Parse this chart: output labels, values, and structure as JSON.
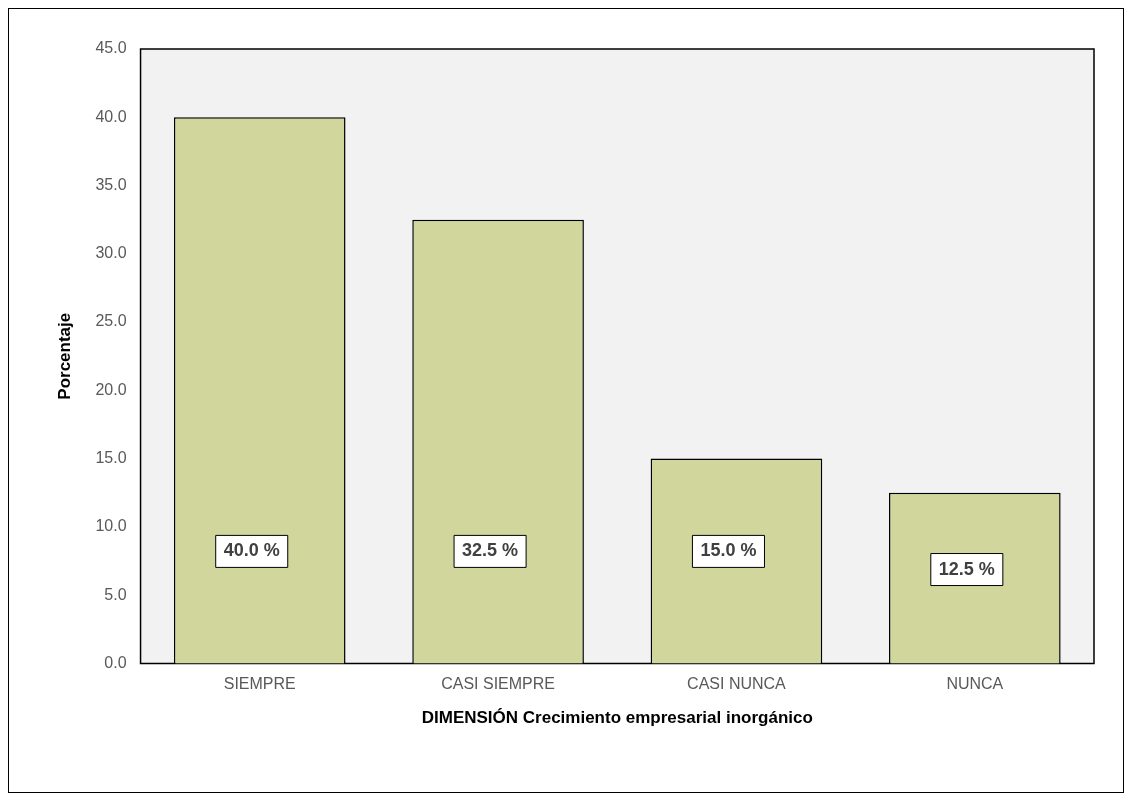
{
  "chart_data": {
    "type": "bar",
    "xlabel": "DIMENSIÓN Crecimiento empresarial inorgánico",
    "ylabel": "Porcentaje",
    "categories": [
      "SIEMPRE",
      "CASI SIEMPRE",
      "CASI NUNCA",
      "NUNCA"
    ],
    "values": [
      40.0,
      32.5,
      15.0,
      12.5
    ],
    "value_labels": [
      "40.0 %",
      "32.5 %",
      "15.0 %",
      "12.5 %"
    ],
    "color": "#d0d69c",
    "ylim": [
      0,
      45
    ],
    "yticks": [
      {
        "value": 0,
        "label": "0.0"
      },
      {
        "value": 5,
        "label": "5.0"
      },
      {
        "value": 10,
        "label": "10.0"
      },
      {
        "value": 15,
        "label": "15.0"
      },
      {
        "value": 20,
        "label": "20.0"
      },
      {
        "value": 25,
        "label": "25.0"
      },
      {
        "value": 30,
        "label": "30.0"
      },
      {
        "value": 35,
        "label": "35.0"
      },
      {
        "value": 40,
        "label": "40.0"
      },
      {
        "value": 45,
        "label": "45.0"
      }
    ],
    "grid": false,
    "legend": false
  }
}
